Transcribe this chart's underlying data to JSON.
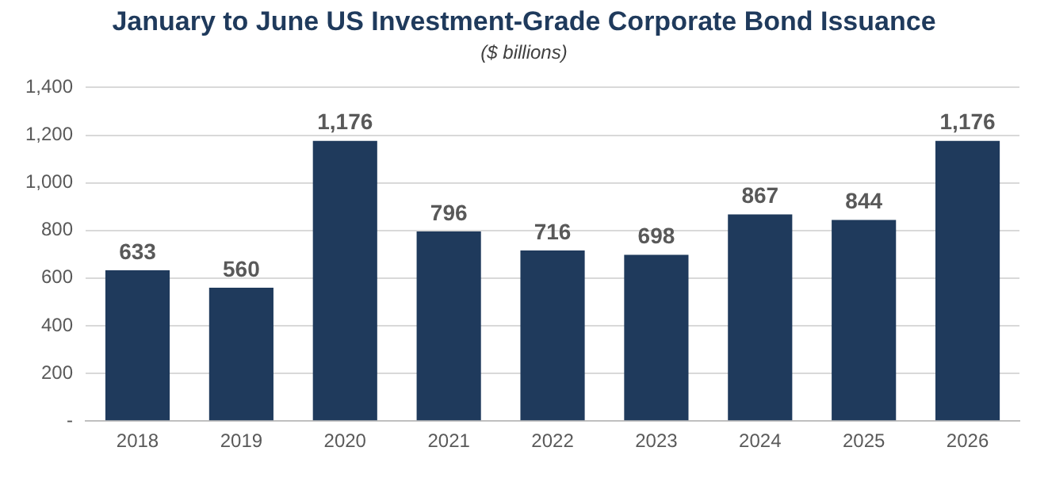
{
  "chart_data": {
    "type": "bar",
    "title": "January to June US Investment-Grade Corporate Bond Issuance",
    "subtitle": "($ billions)",
    "categories": [
      "2018",
      "2019",
      "2020",
      "2021",
      "2022",
      "2023",
      "2024",
      "2025",
      "2026"
    ],
    "values": [
      633,
      560,
      1176,
      796,
      716,
      698,
      867,
      844,
      1176
    ],
    "value_labels": [
      "633",
      "560",
      "1,176",
      "796",
      "716",
      "698",
      "867",
      "844",
      "1,176"
    ],
    "color": "#1f3a5c",
    "ylim": [
      0,
      1400
    ],
    "yticks": [
      {
        "value": 0,
        "label": "-"
      },
      {
        "value": 200,
        "label": "200"
      },
      {
        "value": 400,
        "label": "400"
      },
      {
        "value": 600,
        "label": "600"
      },
      {
        "value": 800,
        "label": "800"
      },
      {
        "value": 1000,
        "label": "1,000"
      },
      {
        "value": 1200,
        "label": "1,200"
      },
      {
        "value": 1400,
        "label": "1,400"
      }
    ],
    "grid": "y"
  }
}
